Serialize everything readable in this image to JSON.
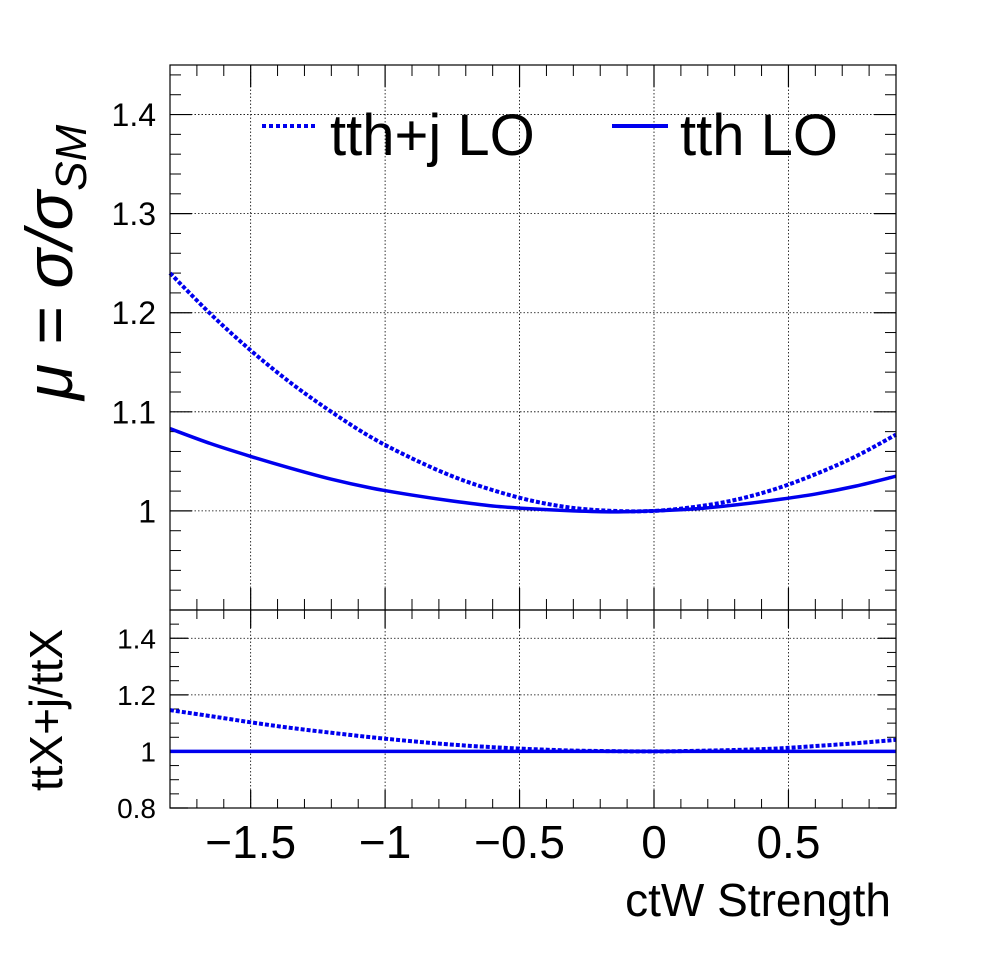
{
  "chart_data": [
    {
      "type": "line",
      "panel": "main",
      "ylabel_parts": [
        "μ = σ/σ",
        "SM"
      ],
      "xlim": [
        -1.8,
        0.9
      ],
      "ylim": [
        0.9,
        1.45
      ],
      "x_ticks": [
        -1.5,
        -1,
        -0.5,
        0,
        0.5
      ],
      "y_ticks": [
        1,
        1.1,
        1.2,
        1.3,
        1.4
      ],
      "y_tick_labels": [
        "1",
        "1.1",
        "1.2",
        "1.3",
        "1.4"
      ],
      "grid": true,
      "legend_position": "top",
      "series": [
        {
          "name": "tth+j LO",
          "style": "dashed",
          "color": "#0000ee",
          "x": [
            -1.8,
            -1.65,
            -1.5,
            -1.35,
            -1.2,
            -1.05,
            -0.9,
            -0.75,
            -0.6,
            -0.45,
            -0.3,
            -0.15,
            0,
            0.15,
            0.3,
            0.45,
            0.6,
            0.75,
            0.9
          ],
          "y": [
            1.24,
            1.199,
            1.162,
            1.129,
            1.1,
            1.074,
            1.053,
            1.035,
            1.021,
            1.01,
            1.003,
            1.0,
            1.0,
            1.004,
            1.011,
            1.022,
            1.037,
            1.055,
            1.077
          ]
        },
        {
          "name": "tth LO",
          "style": "solid",
          "color": "#0000ee",
          "x": [
            -1.8,
            -1.65,
            -1.5,
            -1.35,
            -1.2,
            -1.05,
            -0.9,
            -0.75,
            -0.6,
            -0.45,
            -0.3,
            -0.15,
            0,
            0.15,
            0.3,
            0.45,
            0.6,
            0.75,
            0.9
          ],
          "y": [
            1.083,
            1.068,
            1.055,
            1.043,
            1.032,
            1.023,
            1.016,
            1.01,
            1.005,
            1.002,
            1.0,
            0.999,
            1.0,
            1.002,
            1.006,
            1.011,
            1.017,
            1.025,
            1.035
          ]
        }
      ]
    },
    {
      "type": "line",
      "panel": "ratio",
      "ylabel": "ttX+j/ttX",
      "xlabel": "ctW Strength",
      "xlim": [
        -1.8,
        0.9
      ],
      "ylim": [
        0.8,
        1.5
      ],
      "x_ticks": [
        -1.5,
        -1,
        -0.5,
        0,
        0.5
      ],
      "x_tick_labels": [
        "−1.5",
        "−1",
        "−0.5",
        "0",
        "0.5"
      ],
      "y_ticks": [
        0.8,
        1,
        1.2,
        1.4
      ],
      "y_tick_labels": [
        "0.8",
        "1",
        "1.2",
        "1.4"
      ],
      "grid": true,
      "series": [
        {
          "style": "dashed",
          "color": "#0000ee",
          "x": [
            -1.8,
            -1.65,
            -1.5,
            -1.35,
            -1.2,
            -1.05,
            -0.9,
            -0.75,
            -0.6,
            -0.45,
            -0.3,
            -0.15,
            0,
            0.15,
            0.3,
            0.45,
            0.6,
            0.75,
            0.9
          ],
          "y": [
            1.146,
            1.125,
            1.103,
            1.083,
            1.066,
            1.05,
            1.036,
            1.024,
            1.015,
            1.008,
            1.003,
            1.001,
            1.0,
            1.002,
            1.005,
            1.01,
            1.019,
            1.029,
            1.041
          ]
        },
        {
          "style": "solid",
          "color": "#0000ee",
          "x": [
            -1.8,
            0.9
          ],
          "y": [
            1.0,
            1.0
          ]
        }
      ]
    }
  ]
}
